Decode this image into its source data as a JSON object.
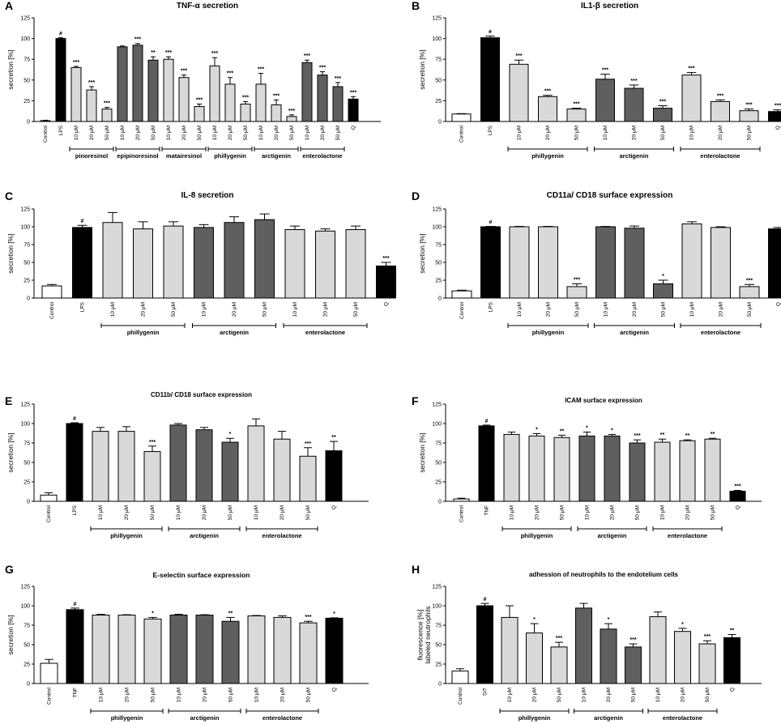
{
  "colors": {
    "black": "#000000",
    "light": "#d9d9d9",
    "dark": "#5f5f5f",
    "white": "#ffffff"
  },
  "chart_data": [
    {
      "id": "A",
      "type": "bar",
      "title": "TNF-α secretion",
      "ylabel": "secretion [%]",
      "ylim": [
        0,
        125
      ],
      "yticks": [
        0,
        25,
        50,
        75,
        100,
        125
      ],
      "categories": [
        "Control",
        "LPS",
        "10 μM",
        "20 μM",
        "50 μM",
        "10 μM",
        "20 μM",
        "50 μM",
        "10 μM",
        "20 μM",
        "50 μM",
        "10 μM",
        "20 μM",
        "50 μM",
        "10 μM",
        "20 μM",
        "50 μM",
        "10 μM",
        "20 μM",
        "50 μM",
        "Q"
      ],
      "values": [
        1,
        100,
        65,
        38,
        15,
        90,
        92,
        74,
        75,
        53,
        18,
        67,
        45,
        21,
        45,
        20,
        6,
        71,
        56,
        42,
        27
      ],
      "errors": [
        0.5,
        1,
        1.5,
        4,
        2,
        1,
        2,
        4,
        3,
        3,
        3,
        10,
        8,
        3,
        13,
        6,
        2,
        3,
        4,
        5,
        3
      ],
      "fills": [
        "white",
        "black",
        "light",
        "light",
        "light",
        "dark",
        "dark",
        "dark",
        "light",
        "light",
        "light",
        "light",
        "light",
        "light",
        "light",
        "light",
        "light",
        "dark",
        "dark",
        "dark",
        "black"
      ],
      "labels": [
        "",
        "#",
        "***",
        "***",
        "***",
        "",
        "***",
        "**",
        "***",
        "***",
        "***",
        "***",
        "***",
        "***",
        "***",
        "***",
        "***",
        "***",
        "***",
        "***",
        "***"
      ],
      "groups": [
        {
          "name": "pinoresinol",
          "from": 2,
          "to": 4
        },
        {
          "name": "epipinoresinol",
          "from": 5,
          "to": 7
        },
        {
          "name": "matairesinol",
          "from": 8,
          "to": 10
        },
        {
          "name": "phillygenin",
          "from": 11,
          "to": 13
        },
        {
          "name": "arctigenin",
          "from": 14,
          "to": 16
        },
        {
          "name": "enterolactone",
          "from": 17,
          "to": 19
        }
      ]
    },
    {
      "id": "B",
      "type": "bar",
      "title": "IL1-β secretion",
      "ylabel": "secretion [%]",
      "ylim": [
        0,
        125
      ],
      "yticks": [
        0,
        25,
        50,
        75,
        100,
        125
      ],
      "categories": [
        "Control",
        "LPS",
        "10 μM",
        "20 μM",
        "50 μM",
        "10 μM",
        "20 μM",
        "50 μM",
        "10 μM",
        "20 μM",
        "50 μM",
        "Q"
      ],
      "values": [
        9,
        101,
        69,
        30,
        15,
        51,
        40,
        16,
        56,
        24,
        13,
        12
      ],
      "errors": [
        0.5,
        2,
        5,
        1.5,
        1,
        6,
        4,
        3,
        3,
        2,
        2,
        2
      ],
      "fills": [
        "white",
        "black",
        "light",
        "light",
        "light",
        "dark",
        "dark",
        "dark",
        "light",
        "light",
        "light",
        "black"
      ],
      "labels": [
        "",
        "#",
        "***",
        "***",
        "***",
        "***",
        "***",
        "***",
        "***",
        "***",
        "***",
        "***"
      ],
      "groups": [
        {
          "name": "phillygenin",
          "from": 2,
          "to": 4
        },
        {
          "name": "arctigenin",
          "from": 5,
          "to": 7
        },
        {
          "name": "enterolactone",
          "from": 8,
          "to": 10
        }
      ]
    },
    {
      "id": "C",
      "type": "bar",
      "title": "IL-8 secretion",
      "ylabel": "secretion [%]",
      "ylim": [
        0,
        125
      ],
      "yticks": [
        0,
        25,
        50,
        75,
        100,
        125
      ],
      "categories": [
        "Control",
        "LPS",
        "10 μM",
        "20 μM",
        "50 μM",
        "10 μM",
        "20 μM",
        "50 μM",
        "10 μM",
        "20 μM",
        "50 μM",
        "Q"
      ],
      "values": [
        17,
        99,
        106,
        97,
        101,
        99,
        106,
        110,
        96,
        94,
        96,
        45
      ],
      "errors": [
        2,
        3,
        14,
        10,
        6,
        4,
        8,
        8,
        5,
        3,
        5,
        5
      ],
      "fills": [
        "white",
        "black",
        "light",
        "light",
        "light",
        "dark",
        "dark",
        "dark",
        "light",
        "light",
        "light",
        "black"
      ],
      "labels": [
        "",
        "#",
        "",
        "",
        "",
        "",
        "",
        "",
        "",
        "",
        "",
        "***"
      ],
      "groups": [
        {
          "name": "phillygenin",
          "from": 2,
          "to": 4
        },
        {
          "name": "arctigenin",
          "from": 5,
          "to": 7
        },
        {
          "name": "enterolactone",
          "from": 8,
          "to": 10
        }
      ]
    },
    {
      "id": "D",
      "type": "bar",
      "title": "CD11a/ CD18  surface expression",
      "ylabel": "secretion [%]",
      "ylim": [
        0,
        125
      ],
      "yticks": [
        0,
        25,
        50,
        75,
        100,
        125
      ],
      "categories": [
        "Control",
        "LPS",
        "10 μM",
        "20 μM",
        "50 μM",
        "10 μM",
        "20 μM",
        "50 μM",
        "10 μM",
        "20 μM",
        "50 μM",
        "Q"
      ],
      "values": [
        10,
        100,
        100,
        100,
        16,
        100,
        98,
        20,
        104,
        99,
        16,
        97
      ],
      "errors": [
        1,
        0.5,
        0.5,
        0.5,
        4,
        0.5,
        3,
        5,
        3,
        1,
        3,
        2
      ],
      "fills": [
        "white",
        "black",
        "light",
        "light",
        "light",
        "dark",
        "dark",
        "dark",
        "light",
        "light",
        "light",
        "black"
      ],
      "labels": [
        "",
        "#",
        "",
        "",
        "***",
        "",
        "",
        "*",
        "",
        "",
        "***",
        ""
      ],
      "groups": [
        {
          "name": "phillygenin",
          "from": 2,
          "to": 4
        },
        {
          "name": "arctigenin",
          "from": 5,
          "to": 7
        },
        {
          "name": "enterolactone",
          "from": 8,
          "to": 10
        }
      ]
    },
    {
      "id": "E",
      "type": "bar",
      "title": "CD11b/ CD18  surface expression",
      "ylabel": "secretion [%]",
      "ylim": [
        0,
        125
      ],
      "yticks": [
        0,
        25,
        50,
        75,
        100,
        125
      ],
      "categories": [
        "Control",
        "LPS",
        "10 μM",
        "20 μM",
        "50 μM",
        "10 μM",
        "20 μM",
        "50 μM",
        "10 μM",
        "20 μM",
        "50 μM",
        "Q"
      ],
      "values": [
        8,
        100,
        90,
        90,
        64,
        98,
        92,
        76,
        97,
        80,
        58,
        65
      ],
      "errors": [
        3,
        1,
        5,
        6,
        7,
        2,
        3,
        5,
        9,
        10,
        11,
        12
      ],
      "fills": [
        "white",
        "black",
        "light",
        "light",
        "light",
        "dark",
        "dark",
        "dark",
        "light",
        "light",
        "light",
        "black"
      ],
      "labels": [
        "",
        "#",
        "",
        "",
        "***",
        "",
        "",
        "*",
        "",
        "",
        "***",
        "**"
      ],
      "groups": [
        {
          "name": "phillygenin",
          "from": 2,
          "to": 4
        },
        {
          "name": "arctigenin",
          "from": 5,
          "to": 7
        },
        {
          "name": "enterolactone",
          "from": 8,
          "to": 10
        }
      ]
    },
    {
      "id": "F",
      "type": "bar",
      "title": "ICAM  surface expression",
      "ylabel": "secretion [%]",
      "ylim": [
        0,
        125
      ],
      "yticks": [
        0,
        25,
        50,
        75,
        100,
        125
      ],
      "categories": [
        "Control",
        "TNF",
        "10 μM",
        "20 μM",
        "50 μM",
        "10 μM",
        "20 μM",
        "50 μM",
        "10 μM",
        "20 μM",
        "50 μM",
        "Q"
      ],
      "values": [
        3,
        97,
        86,
        84,
        82,
        84,
        84,
        75,
        76,
        78,
        80,
        13
      ],
      "errors": [
        1,
        1,
        3,
        3,
        3,
        5,
        2,
        4,
        4,
        1,
        1,
        1
      ],
      "fills": [
        "white",
        "black",
        "light",
        "light",
        "light",
        "dark",
        "dark",
        "dark",
        "light",
        "light",
        "light",
        "black"
      ],
      "labels": [
        "",
        "#",
        "",
        "*",
        "**",
        "*",
        "*",
        "***",
        "**",
        "**",
        "**",
        "***"
      ],
      "groups": [
        {
          "name": "phillygenin",
          "from": 2,
          "to": 4
        },
        {
          "name": "arctigenin",
          "from": 5,
          "to": 7
        },
        {
          "name": "enterolactone",
          "from": 8,
          "to": 10
        }
      ]
    },
    {
      "id": "G",
      "type": "bar",
      "title": "E-selectin  surface expression",
      "ylabel": "secretion [%]",
      "ylim": [
        0,
        125
      ],
      "yticks": [
        0,
        25,
        50,
        75,
        100,
        125
      ],
      "categories": [
        "Control",
        "TNF",
        "10 μM",
        "20 μM",
        "50 μM",
        "10 μM",
        "20 μM",
        "50 μM",
        "10 μM",
        "20 μM",
        "50 μM",
        "Q"
      ],
      "values": [
        26,
        95,
        88,
        88,
        83,
        88,
        88,
        80,
        87,
        85,
        78,
        84
      ],
      "errors": [
        5,
        2,
        1,
        0.5,
        2,
        1,
        0.5,
        5,
        0.5,
        2,
        2,
        0.5
      ],
      "fills": [
        "white",
        "black",
        "light",
        "light",
        "light",
        "dark",
        "dark",
        "dark",
        "light",
        "light",
        "light",
        "black"
      ],
      "labels": [
        "",
        "#",
        "",
        "",
        "*",
        "",
        "",
        "**",
        "",
        "",
        "***",
        "*"
      ],
      "groups": [
        {
          "name": "phillygenin",
          "from": 2,
          "to": 4
        },
        {
          "name": "arctigenin",
          "from": 5,
          "to": 7
        },
        {
          "name": "enterolactone",
          "from": 8,
          "to": 10
        }
      ]
    },
    {
      "id": "H",
      "type": "bar",
      "title": "adhession of neutrophils to the endotelium cells",
      "ylabel": "fluorescence [%]- labeled neutrophils",
      "ylim": [
        0,
        125
      ],
      "yticks": [
        0,
        25,
        50,
        75,
        100,
        125
      ],
      "categories": [
        "Control",
        "SIT",
        "10 μM",
        "20 μM",
        "50 μM",
        "10 μM",
        "20 μM",
        "50 μM",
        "10 μM",
        "20 μM",
        "50 μM",
        "Q"
      ],
      "values": [
        16,
        100,
        85,
        65,
        47,
        97,
        70,
        47,
        86,
        67,
        51,
        59
      ],
      "errors": [
        3,
        3,
        15,
        12,
        6,
        6,
        7,
        4,
        6,
        4,
        4,
        4
      ],
      "fills": [
        "white",
        "black",
        "light",
        "light",
        "light",
        "dark",
        "dark",
        "dark",
        "light",
        "light",
        "light",
        "black"
      ],
      "labels": [
        "",
        "#",
        "",
        "*",
        "***",
        "",
        "*",
        "***",
        "",
        "*",
        "***",
        "**"
      ],
      "groups": [
        {
          "name": "phillygenin",
          "from": 2,
          "to": 4
        },
        {
          "name": "arctigenin",
          "from": 5,
          "to": 7
        },
        {
          "name": "enterolactone",
          "from": 8,
          "to": 10
        }
      ]
    }
  ]
}
